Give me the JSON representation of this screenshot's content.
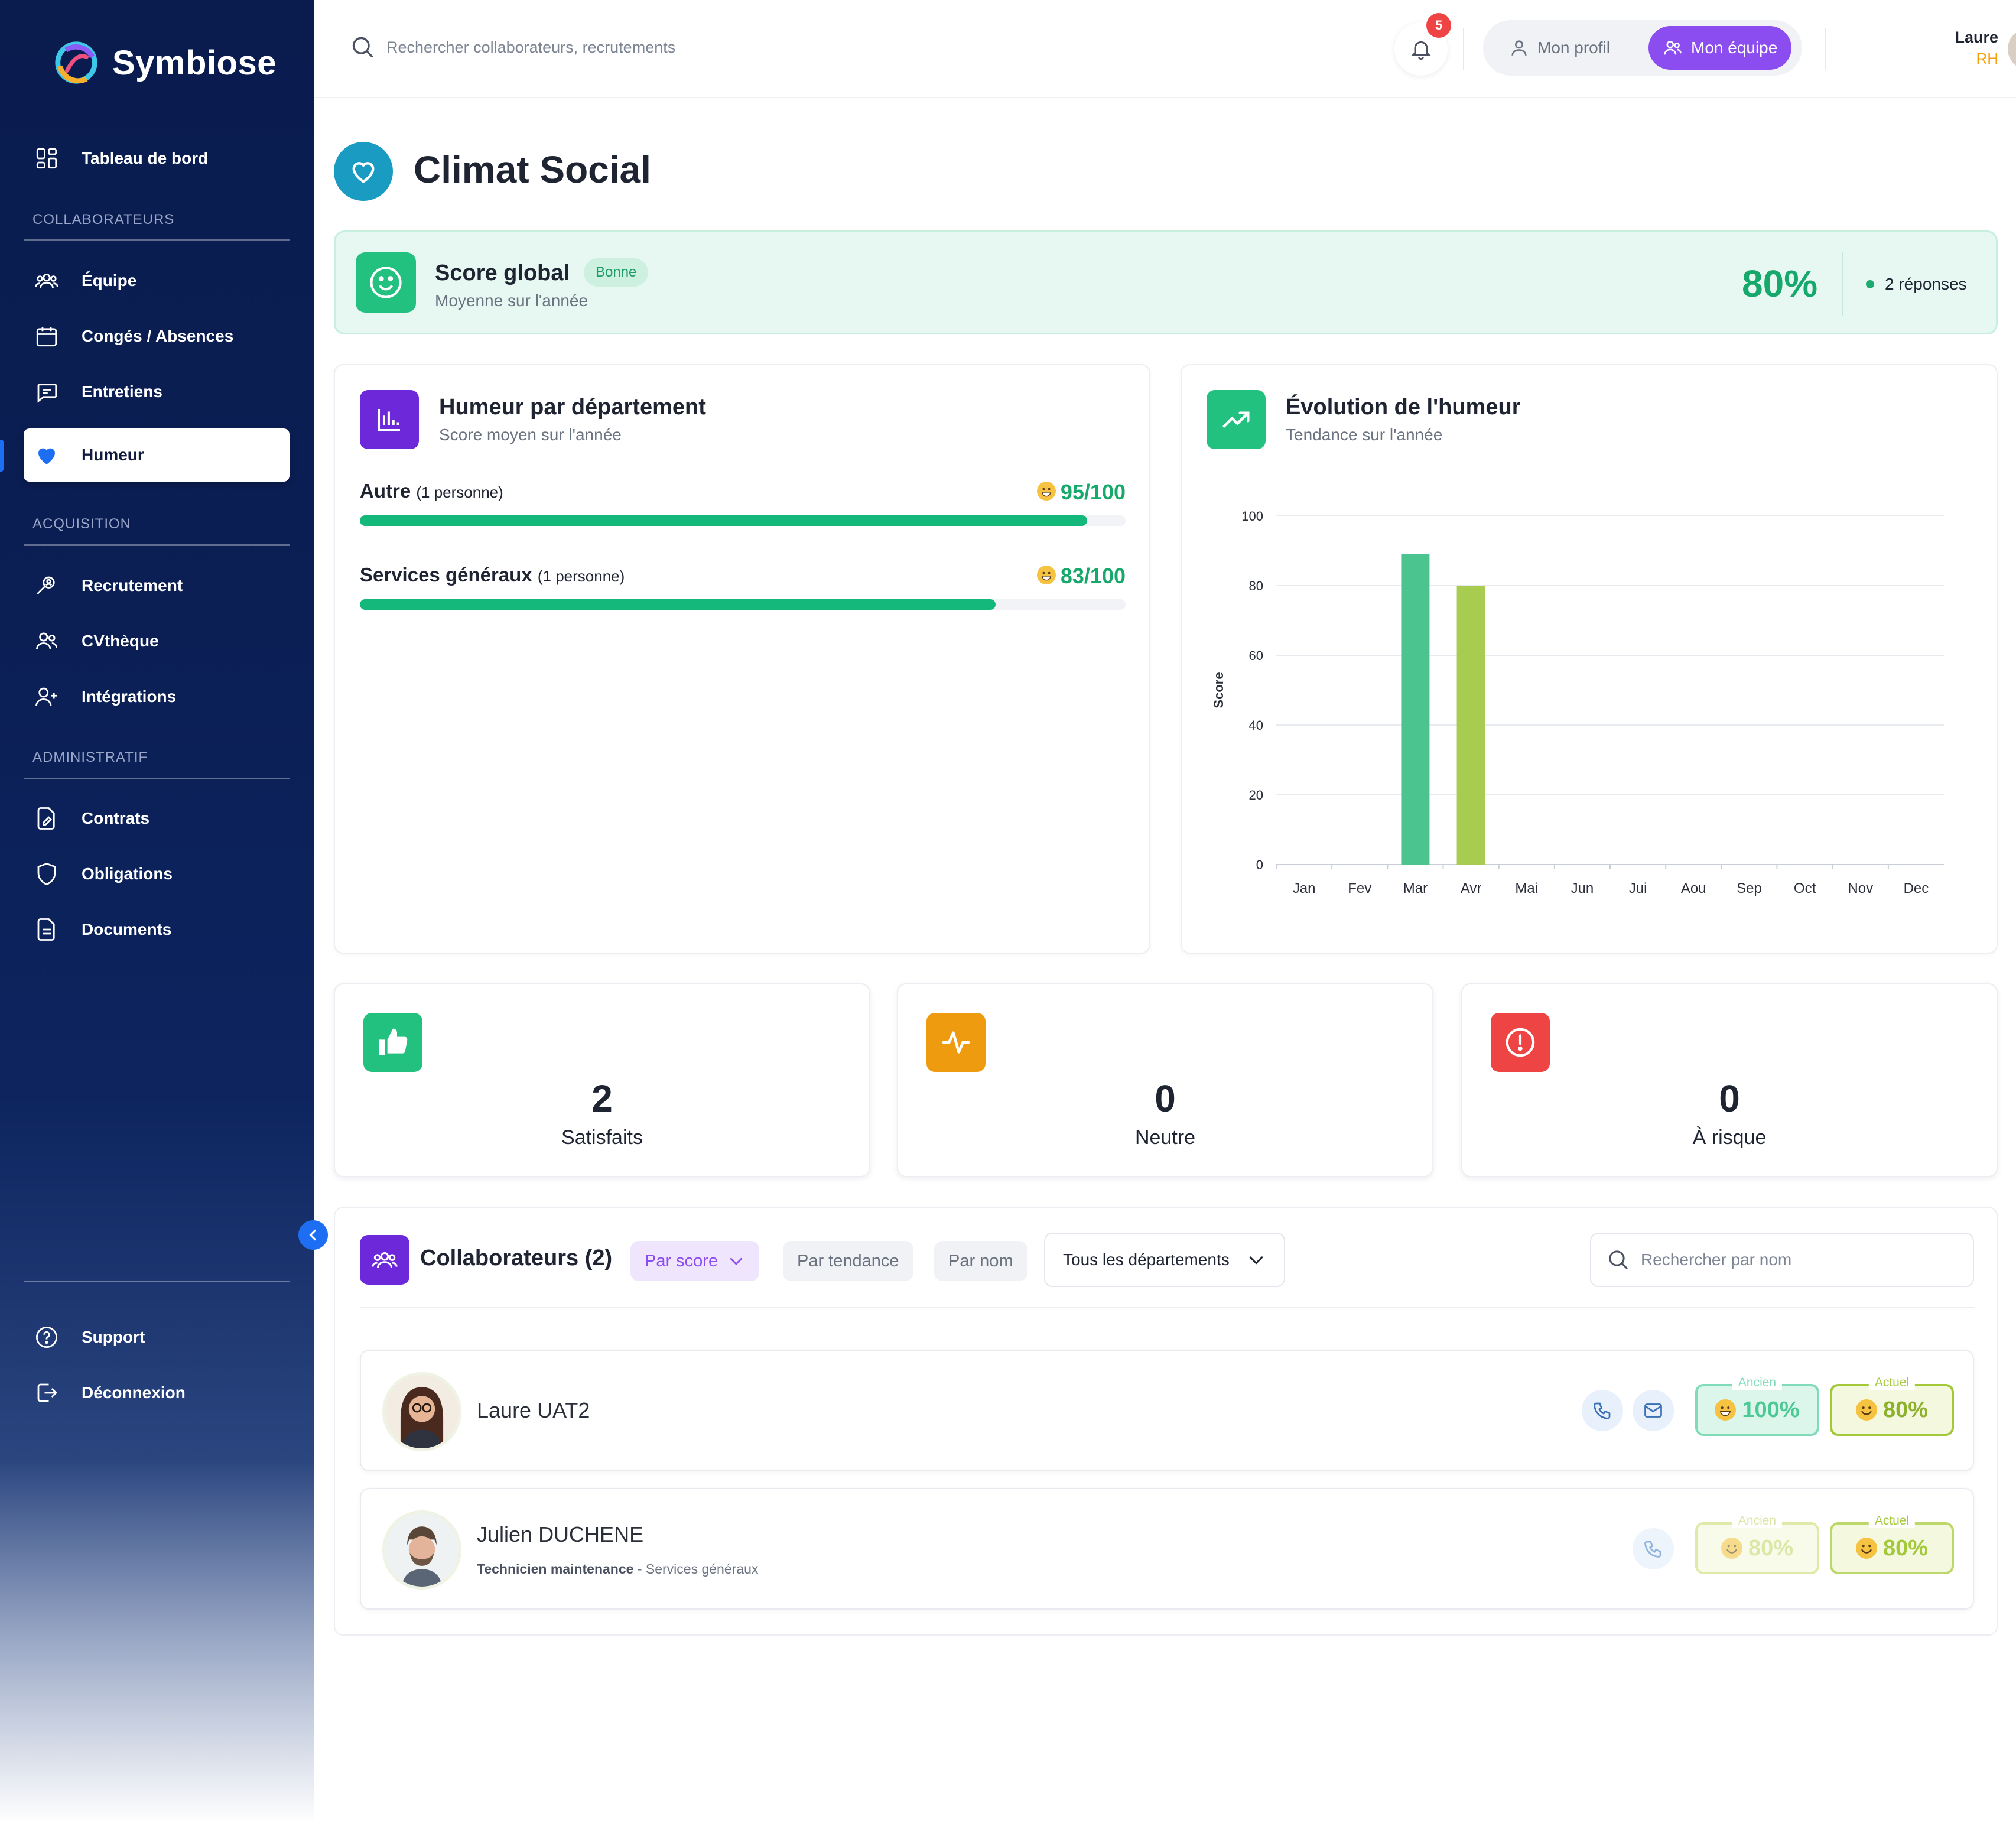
{
  "app": {
    "name": "Symbiose"
  },
  "sidebar": {
    "dashboard": "Tableau de bord",
    "section_collaborateurs": "COLLABORATEURS",
    "equipe": "Équipe",
    "conges": "Congés / Absences",
    "entretiens": "Entretiens",
    "humeur": "Humeur",
    "section_acquisition": "ACQUISITION",
    "recrutement": "Recrutement",
    "cvtheque": "CVthèque",
    "integrations": "Intégrations",
    "section_administratif": "ADMINISTRATIF",
    "contrats": "Contrats",
    "obligations": "Obligations",
    "documents": "Documents",
    "support": "Support",
    "deconnexion": "Déconnexion"
  },
  "topbar": {
    "search_placeholder": "Rechercher collaborateurs, recrutements",
    "notifications_count": "5",
    "mon_profil": "Mon profil",
    "mon_equipe": "Mon équipe",
    "user_name": "Laure",
    "user_role": "RH"
  },
  "page": {
    "title": "Climat Social"
  },
  "score": {
    "title": "Score global",
    "badge": "Bonne",
    "subtitle": "Moyenne sur l'année",
    "value": "80%",
    "responses": "2 réponses"
  },
  "humeur_dept": {
    "title": "Humeur par département",
    "subtitle": "Score moyen sur l'année",
    "rows": [
      {
        "name": "Autre",
        "count": "(1 personne)",
        "score": "95/100",
        "fraction": 0.95
      },
      {
        "name": "Services généraux",
        "count": "(1 personne)",
        "score": "83/100",
        "fraction": 0.83
      }
    ]
  },
  "evolution": {
    "title": "Évolution de l'humeur",
    "subtitle": "Tendance sur l'année"
  },
  "chart_data": {
    "type": "bar",
    "categories": [
      "Jan",
      "Fev",
      "Mar",
      "Avr",
      "Mai",
      "Jun",
      "Jui",
      "Aou",
      "Sep",
      "Oct",
      "Nov",
      "Dec"
    ],
    "values": [
      null,
      null,
      89,
      80,
      null,
      null,
      null,
      null,
      null,
      null,
      null,
      null
    ],
    "bar_colors": {
      "Mar": "#4cc48f",
      "Avr": "#a8cc4f"
    },
    "xlabel": "",
    "ylabel": "Score",
    "ylim": [
      0,
      100
    ],
    "yticks": [
      0,
      20,
      40,
      60,
      80,
      100
    ],
    "grid": true,
    "title": ""
  },
  "kpis": [
    {
      "value": "2",
      "label": "Satisfaits",
      "color": "#22c17f"
    },
    {
      "value": "0",
      "label": "Neutre",
      "color": "#ef9b0f"
    },
    {
      "value": "0",
      "label": "À risque",
      "color": "#ef4444"
    }
  ],
  "collaborateurs": {
    "title": "Collaborateurs (2)",
    "sort_score": "Par score",
    "sort_tendance": "Par tendance",
    "sort_nom": "Par nom",
    "dept_filter": "Tous les départements",
    "search_placeholder": "Rechercher par nom",
    "people": [
      {
        "name": "Laure UAT2",
        "role": "",
        "dept": "",
        "ancien_label": "Ancien",
        "ancien": "100%",
        "actuel_label": "Actuel",
        "actuel": "80%"
      },
      {
        "name": "Julien DUCHENE",
        "role": "Technicien maintenance",
        "dept": "- Services généraux",
        "ancien_label": "Ancien",
        "ancien": "80%",
        "actuel_label": "Actuel",
        "actuel": "80%"
      }
    ]
  }
}
